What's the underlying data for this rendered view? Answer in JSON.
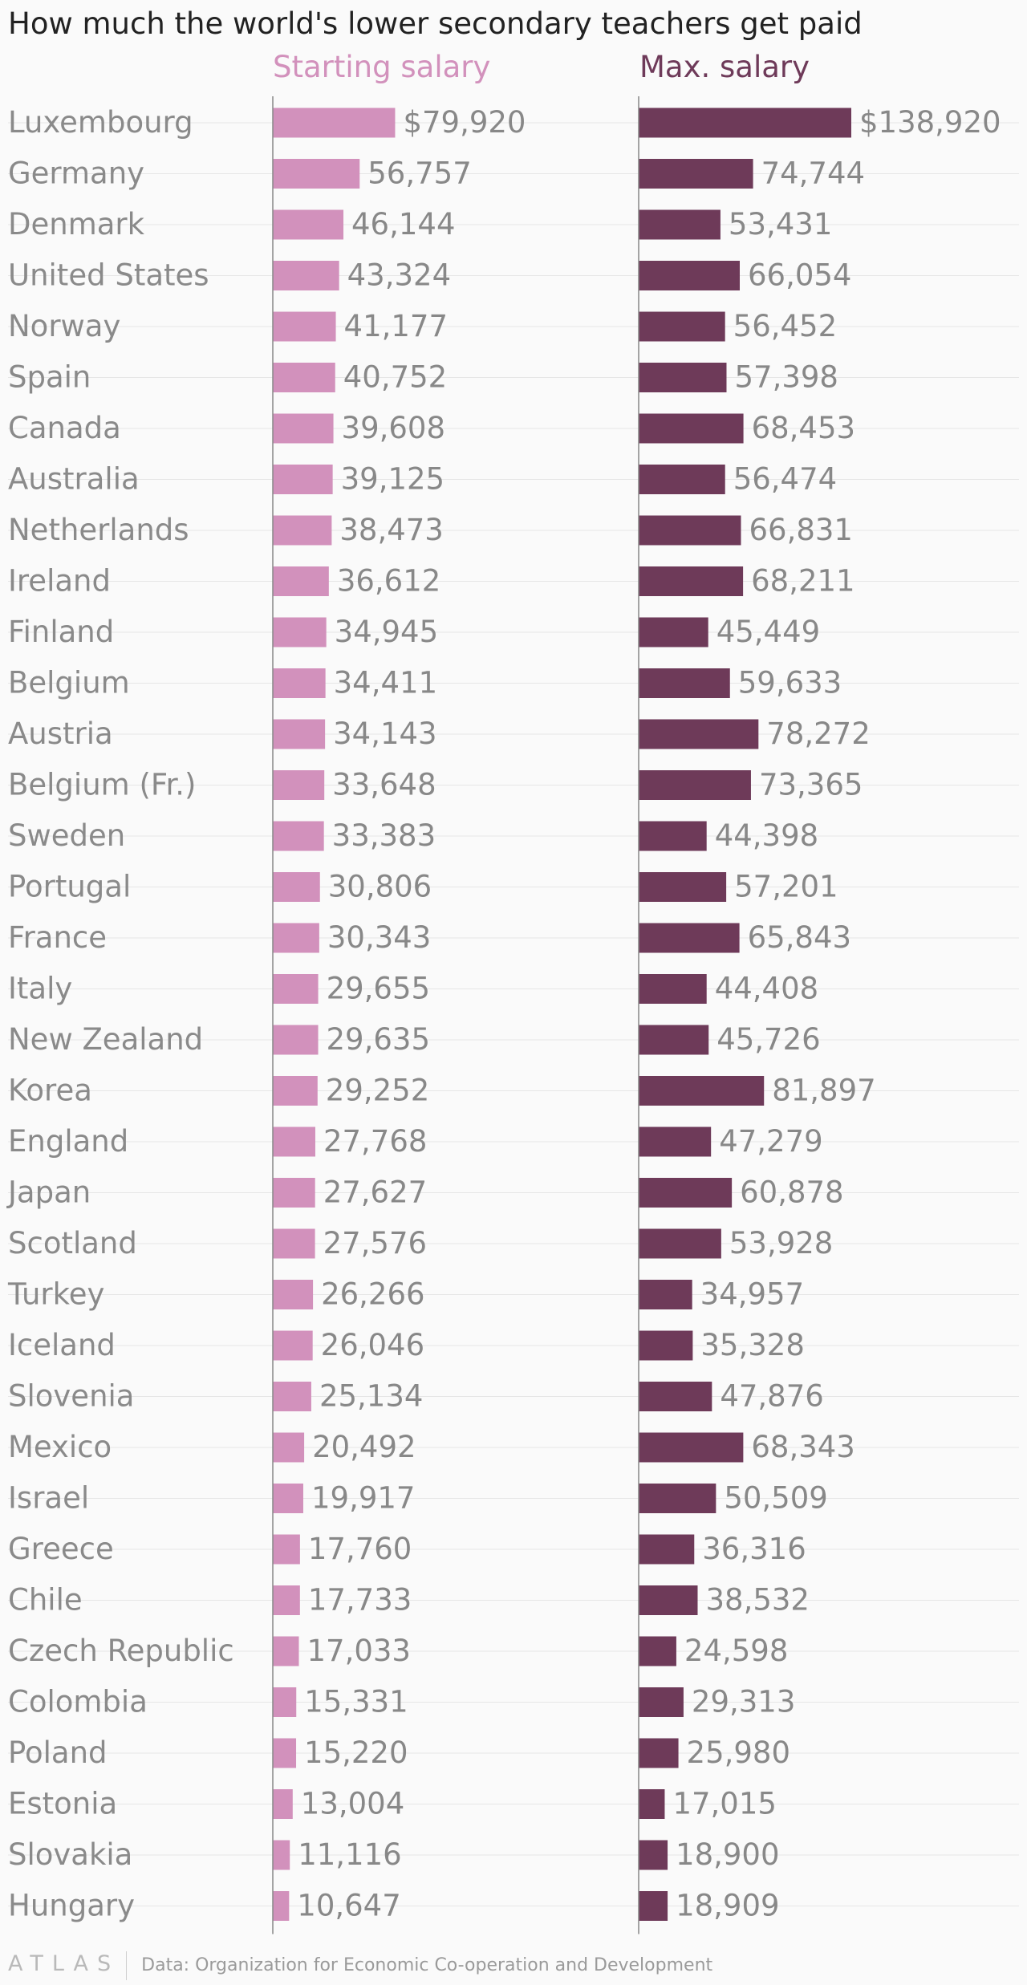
{
  "chart_data": {
    "type": "bar",
    "title": "How much the world's lower secondary teachers get paid",
    "source": "Data: Organization for Economic Co-operation and Development",
    "logo": "ATLAS",
    "categories": [
      "Luxembourg",
      "Germany",
      "Denmark",
      "United States",
      "Norway",
      "Spain",
      "Canada",
      "Australia",
      "Netherlands",
      "Ireland",
      "Finland",
      "Belgium",
      "Austria",
      "Belgium (Fr.)",
      "Sweden",
      "Portugal",
      "France",
      "Italy",
      "New Zealand",
      "Korea",
      "England",
      "Japan",
      "Scotland",
      "Turkey",
      "Iceland",
      "Slovenia",
      "Mexico",
      "Israel",
      "Greece",
      "Chile",
      "Czech Republic",
      "Colombia",
      "Poland",
      "Estonia",
      "Slovakia",
      "Hungary"
    ],
    "series": [
      {
        "name": "Starting salary",
        "color": "#d291bc",
        "values": [
          79920,
          56757,
          46144,
          43324,
          41177,
          40752,
          39608,
          39125,
          38473,
          36612,
          34945,
          34411,
          34143,
          33648,
          33383,
          30806,
          30343,
          29655,
          29635,
          29252,
          27768,
          27627,
          27576,
          26266,
          26046,
          25134,
          20492,
          19917,
          17760,
          17733,
          17033,
          15331,
          15220,
          13004,
          11116,
          10647
        ],
        "labels": [
          "$79,920",
          "56,757",
          "46,144",
          "43,324",
          "41,177",
          "40,752",
          "39,608",
          "39,125",
          "38,473",
          "36,612",
          "34,945",
          "34,411",
          "34,143",
          "33,648",
          "33,383",
          "30,806",
          "30,343",
          "29,655",
          "29,635",
          "29,252",
          "27,768",
          "27,627",
          "27,576",
          "26,266",
          "26,046",
          "25,134",
          "20,492",
          "19,917",
          "17,760",
          "17,733",
          "17,033",
          "15,331",
          "15,220",
          "13,004",
          "11,116",
          "10,647"
        ]
      },
      {
        "name": "Max. salary",
        "color": "#6e3a59",
        "values": [
          138920,
          74744,
          53431,
          66054,
          56452,
          57398,
          68453,
          56474,
          66831,
          68211,
          45449,
          59633,
          78272,
          73365,
          44398,
          57201,
          65843,
          44408,
          45726,
          81897,
          47279,
          60878,
          53928,
          34957,
          35328,
          47876,
          68343,
          50509,
          36316,
          38532,
          24598,
          29313,
          25980,
          17015,
          18900,
          18909
        ],
        "labels": [
          "$138,920",
          "74,744",
          "53,431",
          "66,054",
          "56,452",
          "57,398",
          "68,453",
          "56,474",
          "66,831",
          "68,211",
          "45,449",
          "59,633",
          "78,272",
          "73,365",
          "44,398",
          "57,201",
          "65,843",
          "44,408",
          "45,726",
          "81,897",
          "47,279",
          "60,878",
          "53,928",
          "34,957",
          "35,328",
          "47,876",
          "68,343",
          "50,509",
          "36,316",
          "38,532",
          "24,598",
          "29,313",
          "25,980",
          "17,015",
          "18,900",
          "18,909"
        ]
      }
    ]
  }
}
